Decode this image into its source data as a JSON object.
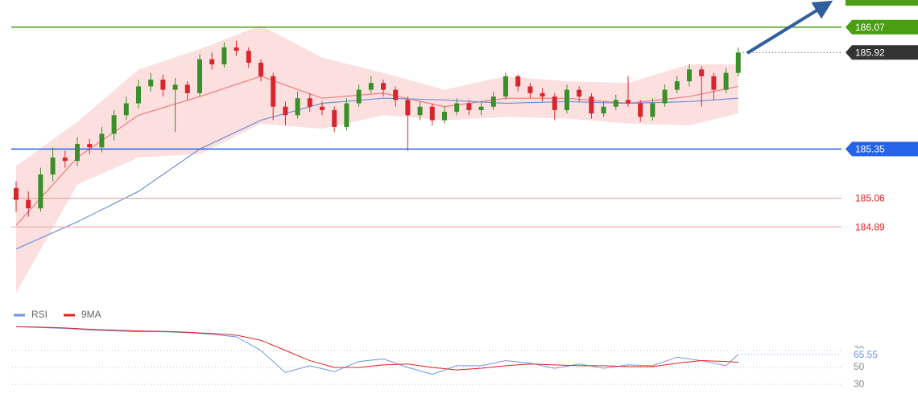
{
  "chart_data": [
    {
      "type": "candlestick",
      "ylim": [
        184.45,
        186.23
      ],
      "up_color": "#3a8f2a",
      "down_color": "#d8262e",
      "candles": [
        [
          185.12,
          185.16,
          184.98,
          185.05
        ],
        [
          185.05,
          185.1,
          184.95,
          185.0
        ],
        [
          185.0,
          185.24,
          184.98,
          185.2
        ],
        [
          185.2,
          185.36,
          185.16,
          185.3
        ],
        [
          185.3,
          185.34,
          185.24,
          185.28
        ],
        [
          185.28,
          185.42,
          185.25,
          185.38
        ],
        [
          185.38,
          185.41,
          185.32,
          185.36
        ],
        [
          185.36,
          185.48,
          185.33,
          185.44
        ],
        [
          185.44,
          185.58,
          185.4,
          185.55
        ],
        [
          185.55,
          185.66,
          185.52,
          185.62
        ],
        [
          185.62,
          185.76,
          185.59,
          185.72
        ],
        [
          185.72,
          185.8,
          185.69,
          185.76
        ],
        [
          185.76,
          185.79,
          185.66,
          185.7
        ],
        [
          185.7,
          185.77,
          185.45,
          185.73
        ],
        [
          185.73,
          185.75,
          185.64,
          185.68
        ],
        [
          185.68,
          185.91,
          185.66,
          185.88
        ],
        [
          185.88,
          185.92,
          185.82,
          185.85
        ],
        [
          185.85,
          185.98,
          185.83,
          185.95
        ],
        [
          185.95,
          185.99,
          185.9,
          185.93
        ],
        [
          185.93,
          185.95,
          185.83,
          185.86
        ],
        [
          185.86,
          185.88,
          185.75,
          185.78
        ],
        [
          185.78,
          185.8,
          185.52,
          185.6
        ],
        [
          185.6,
          185.63,
          185.49,
          185.55
        ],
        [
          185.55,
          185.69,
          185.53,
          185.65
        ],
        [
          185.65,
          185.68,
          185.57,
          185.6
        ],
        [
          185.6,
          185.63,
          185.55,
          185.58
        ],
        [
          185.58,
          185.6,
          185.45,
          185.48
        ],
        [
          185.48,
          185.65,
          185.46,
          185.62
        ],
        [
          185.62,
          185.73,
          185.6,
          185.7
        ],
        [
          185.7,
          185.78,
          185.68,
          185.74
        ],
        [
          185.74,
          185.76,
          185.66,
          185.7
        ],
        [
          185.7,
          185.72,
          185.6,
          185.64
        ],
        [
          185.64,
          185.66,
          185.34,
          185.55
        ],
        [
          185.55,
          185.63,
          185.52,
          185.6
        ],
        [
          185.6,
          185.62,
          185.49,
          185.52
        ],
        [
          185.52,
          185.6,
          185.5,
          185.57
        ],
        [
          185.57,
          185.65,
          185.55,
          185.62
        ],
        [
          185.62,
          185.64,
          185.55,
          185.58
        ],
        [
          185.58,
          185.63,
          185.55,
          185.6
        ],
        [
          185.6,
          185.69,
          185.58,
          185.66
        ],
        [
          185.66,
          185.8,
          185.64,
          185.78
        ],
        [
          185.78,
          185.79,
          185.69,
          185.72
        ],
        [
          185.72,
          185.74,
          185.65,
          185.68
        ],
        [
          185.68,
          185.71,
          185.63,
          185.66
        ],
        [
          185.66,
          185.68,
          185.52,
          185.58
        ],
        [
          185.58,
          185.73,
          185.56,
          185.7
        ],
        [
          185.7,
          185.72,
          185.63,
          185.66
        ],
        [
          185.66,
          185.68,
          185.53,
          185.56
        ],
        [
          185.56,
          185.63,
          185.54,
          185.6
        ],
        [
          185.6,
          185.67,
          185.58,
          185.64
        ],
        [
          185.64,
          185.78,
          185.6,
          185.62
        ],
        [
          185.62,
          185.64,
          185.51,
          185.54
        ],
        [
          185.54,
          185.65,
          185.52,
          185.62
        ],
        [
          185.62,
          185.73,
          185.6,
          185.7
        ],
        [
          185.7,
          185.78,
          185.68,
          185.75
        ],
        [
          185.75,
          185.85,
          185.72,
          185.82
        ],
        [
          185.82,
          185.84,
          185.6,
          185.78
        ],
        [
          185.78,
          185.8,
          185.64,
          185.7
        ],
        [
          185.7,
          185.83,
          185.68,
          185.8
        ],
        [
          185.8,
          185.95,
          185.78,
          185.92
        ]
      ],
      "band": {
        "color": "#fbd6d6",
        "x": [
          0,
          5,
          10,
          15,
          20,
          25,
          30,
          35,
          40,
          45,
          50,
          55,
          59
        ],
        "upper": [
          185.25,
          185.51,
          185.82,
          185.94,
          186.08,
          185.89,
          185.8,
          185.7,
          185.78,
          185.75,
          185.74,
          185.85,
          185.85
        ],
        "lower": [
          184.5,
          185.14,
          185.3,
          185.32,
          185.5,
          185.47,
          185.55,
          185.52,
          185.54,
          185.53,
          185.5,
          185.49,
          185.56
        ]
      },
      "series": [
        {
          "color": "#f07a7a",
          "x": [
            0,
            5,
            10,
            15,
            20,
            25,
            30,
            35,
            40,
            45,
            50,
            55,
            59
          ],
          "values": [
            184.9,
            185.3,
            185.55,
            185.66,
            185.78,
            185.65,
            185.68,
            185.6,
            185.65,
            185.65,
            185.62,
            185.66,
            185.72
          ]
        },
        {
          "color": "#6f8fd8",
          "x": [
            0,
            5,
            10,
            15,
            20,
            25,
            30,
            35,
            40,
            45,
            50,
            55,
            59
          ],
          "values": [
            184.76,
            184.92,
            185.1,
            185.35,
            185.52,
            185.62,
            185.65,
            185.64,
            185.62,
            185.63,
            185.62,
            185.63,
            185.65
          ]
        }
      ],
      "levels": [
        {
          "value": 186.07,
          "color": "#4a9e12"
        },
        {
          "value": 185.35,
          "color": "#2563eb"
        },
        {
          "value": 185.06,
          "color": "#f29a9a"
        },
        {
          "value": 184.89,
          "color": "#f29a9a"
        }
      ],
      "last": {
        "value": 185.92,
        "color": "#333333"
      }
    },
    {
      "type": "line",
      "ylim": [
        14,
        104
      ],
      "yticks": [
        30,
        50,
        70
      ],
      "series": [
        {
          "name": "RSI",
          "color": "#6f95e8",
          "x": [
            0,
            2,
            4,
            6,
            8,
            10,
            12,
            14,
            16,
            18,
            20,
            22,
            24,
            26,
            28,
            30,
            32,
            34,
            36,
            38,
            40,
            42,
            44,
            46,
            48,
            50,
            52,
            54,
            56,
            58,
            59
          ],
          "values": [
            98,
            97,
            96,
            94,
            93,
            92,
            92,
            91,
            89,
            86,
            70,
            44,
            52,
            45,
            57,
            60,
            50,
            42,
            52,
            52,
            58,
            55,
            49,
            54,
            49,
            53,
            52,
            62,
            58,
            52,
            65.55
          ]
        },
        {
          "name": "9MA",
          "color": "#e0201f",
          "x": [
            0,
            2,
            4,
            6,
            8,
            10,
            12,
            14,
            16,
            18,
            20,
            22,
            24,
            26,
            28,
            30,
            32,
            34,
            36,
            38,
            40,
            42,
            44,
            46,
            48,
            50,
            52,
            54,
            56,
            58,
            59
          ],
          "values": [
            98,
            97.5,
            96.5,
            95,
            94,
            93,
            92.5,
            91.5,
            90,
            88,
            82,
            70,
            58,
            50,
            50,
            53,
            54,
            50,
            47,
            49,
            52,
            54,
            53,
            52,
            52,
            51,
            51,
            55,
            58,
            57,
            56
          ]
        }
      ]
    }
  ]
}
